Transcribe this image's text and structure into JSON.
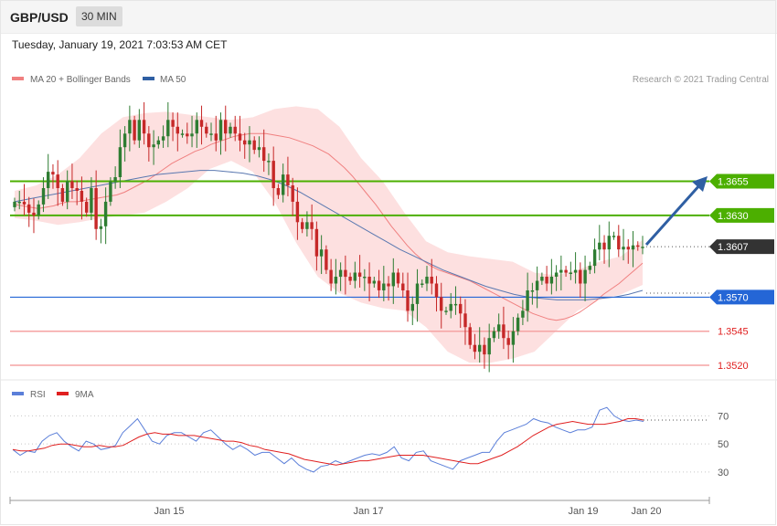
{
  "header": {
    "symbol": "GBP/USD",
    "timeframe": "30 MIN",
    "datetime": "Tuesday, January 19, 2021 7:03:53 AM CET"
  },
  "credit": "Research © 2021 Trading Central",
  "colors": {
    "up": "#2e7d32",
    "down": "#c62828",
    "band": "#fde0e0",
    "ma20": "#f08080",
    "ma50": "#5a78b0",
    "resistance": "#4caf00",
    "support_blue": "#2466d6",
    "support_red": "#f5a3a3",
    "current": "#333333",
    "rsi": "#5b7fd9",
    "rsi_ma": "#e02020"
  },
  "chart_data": [
    {
      "type": "candlestick",
      "legend": [
        {
          "name": "MA 20 + Bollinger Bands",
          "color": "#f08080"
        },
        {
          "name": "MA 50",
          "color": "#2f5fa3"
        }
      ],
      "ylim": [
        1.3512,
        1.3721
      ],
      "x_tick_labels": [
        "Jan 15",
        "Jan 17",
        "Jan 19",
        "Jan 20"
      ],
      "levels": [
        {
          "value": 1.3655,
          "label": "1.3655",
          "kind": "resistance"
        },
        {
          "value": 1.363,
          "label": "1.3630",
          "kind": "resistance"
        },
        {
          "value": 1.3607,
          "label": "1.3607",
          "kind": "current"
        },
        {
          "value": 1.357,
          "label": "1.3570",
          "kind": "support_blue"
        },
        {
          "value": 1.3545,
          "label": "1.3545",
          "kind": "support_red"
        },
        {
          "value": 1.352,
          "label": "1.3520",
          "kind": "support_red"
        }
      ],
      "close": [
        1.364,
        1.364,
        1.3638,
        1.3632,
        1.363,
        1.3638,
        1.365,
        1.3662,
        1.366,
        1.365,
        1.364,
        1.3655,
        1.365,
        1.3648,
        1.364,
        1.3632,
        1.365,
        1.362,
        1.3622,
        1.364,
        1.3655,
        1.3658,
        1.368,
        1.369,
        1.37,
        1.3685,
        1.37,
        1.369,
        1.368,
        1.3682,
        1.3685,
        1.3688,
        1.37,
        1.3695,
        1.369,
        1.369,
        1.3688,
        1.369,
        1.37,
        1.3695,
        1.369,
        1.369,
        1.3685,
        1.37,
        1.369,
        1.3695,
        1.369,
        1.3685,
        1.3682,
        1.3685,
        1.3678,
        1.368,
        1.367,
        1.367,
        1.365,
        1.3645,
        1.366,
        1.3652,
        1.364,
        1.3625,
        1.362,
        1.3625,
        1.362,
        1.36,
        1.3605,
        1.359,
        1.358,
        1.3585,
        1.359,
        1.3585,
        1.3582,
        1.3588,
        1.3585,
        1.3585,
        1.358,
        1.3582,
        1.3575,
        1.358,
        1.3578,
        1.3588,
        1.358,
        1.3575,
        1.356,
        1.3565,
        1.358,
        1.358,
        1.3585,
        1.358,
        1.357,
        1.356,
        1.356,
        1.3565,
        1.3565,
        1.3558,
        1.3548,
        1.3535,
        1.353,
        1.3535,
        1.3528,
        1.354,
        1.3545,
        1.355,
        1.354,
        1.3535,
        1.3545,
        1.3555,
        1.356,
        1.3575,
        1.3575,
        1.3582,
        1.3585,
        1.358,
        1.3585,
        1.3588,
        1.359,
        1.3588,
        1.3588,
        1.359,
        1.358,
        1.359,
        1.3593,
        1.3605,
        1.361,
        1.3605,
        1.3615,
        1.3615,
        1.3605,
        1.3607,
        1.3605,
        1.3608,
        1.3607,
        1.3607
      ],
      "ma20": [
        1.3638,
        1.3637,
        1.3636,
        1.3635,
        1.3636,
        1.3637,
        1.3639,
        1.364,
        1.364,
        1.3641,
        1.3642,
        1.3643,
        1.3644,
        1.3645,
        1.3647,
        1.365,
        1.3653,
        1.3656,
        1.366,
        1.3664,
        1.3668,
        1.3671,
        1.3674,
        1.3677,
        1.3679,
        1.3682,
        1.3684,
        1.3686,
        1.3688,
        1.3689,
        1.369,
        1.369,
        1.369,
        1.3689,
        1.3688,
        1.3687,
        1.3685,
        1.3683,
        1.3681,
        1.3678,
        1.3675,
        1.367,
        1.3665,
        1.3659,
        1.3652,
        1.3645,
        1.3638,
        1.363,
        1.3622,
        1.3615,
        1.3608,
        1.3602,
        1.3597,
        1.3593,
        1.359,
        1.3588,
        1.3586,
        1.3584,
        1.3582,
        1.3579,
        1.3576,
        1.3573,
        1.357,
        1.3567,
        1.3564,
        1.3561,
        1.3558,
        1.3556,
        1.3554,
        1.3553,
        1.3554,
        1.3556,
        1.3559,
        1.3563,
        1.3567,
        1.3572,
        1.3576,
        1.358,
        1.3585,
        1.359,
        1.3595
      ],
      "ma50": [
        1.364,
        1.3642,
        1.3644,
        1.3646,
        1.3648,
        1.365,
        1.3652,
        1.3654,
        1.3656,
        1.3658,
        1.366,
        1.3661,
        1.3662,
        1.3663,
        1.3663,
        1.3662,
        1.3661,
        1.3659,
        1.3656,
        1.3652,
        1.3647,
        1.3641,
        1.3635,
        1.3629,
        1.3623,
        1.3617,
        1.3611,
        1.3605,
        1.36,
        1.3595,
        1.359,
        1.3586,
        1.3582,
        1.3578,
        1.3575,
        1.3572,
        1.357,
        1.3569,
        1.3568,
        1.3568,
        1.3568,
        1.3569,
        1.357,
        1.3572,
        1.3575
      ],
      "bb_upper": [
        1.3648,
        1.3652,
        1.366,
        1.3672,
        1.369,
        1.3702,
        1.3705,
        1.3706,
        1.3704,
        1.3702,
        1.37,
        1.3702,
        1.3708,
        1.371,
        1.3708,
        1.3695,
        1.3672,
        1.3655,
        1.3632,
        1.3611,
        1.3603,
        1.36,
        1.3598,
        1.3596,
        1.3588,
        1.3586,
        1.359,
        1.3596,
        1.36,
        1.3612
      ],
      "bb_lower": [
        1.3628,
        1.3626,
        1.3623,
        1.3625,
        1.3628,
        1.363,
        1.3632,
        1.364,
        1.365,
        1.3664,
        1.367,
        1.3662,
        1.364,
        1.361,
        1.3585,
        1.3573,
        1.3566,
        1.3562,
        1.356,
        1.3548,
        1.353,
        1.3522,
        1.3522,
        1.3525,
        1.353,
        1.3545,
        1.356,
        1.3568,
        1.3572,
        1.3579
      ]
    },
    {
      "type": "line",
      "series": [
        {
          "name": "RSI",
          "color": "#5b7fd9"
        },
        {
          "name": "9MA",
          "color": "#e02020"
        }
      ],
      "ylim": [
        15,
        80
      ],
      "y_ticks": [
        "70",
        "50",
        "30"
      ],
      "rsi": [
        46,
        42,
        45,
        44,
        52,
        56,
        58,
        52,
        48,
        45,
        52,
        50,
        46,
        47,
        49,
        58,
        63,
        68,
        60,
        52,
        50,
        56,
        58,
        58,
        55,
        52,
        58,
        60,
        55,
        50,
        46,
        49,
        46,
        42,
        44,
        44,
        40,
        36,
        40,
        35,
        32,
        30,
        34,
        35,
        38,
        36,
        38,
        40,
        42,
        43,
        42,
        44,
        48,
        40,
        38,
        44,
        45,
        38,
        36,
        34,
        32,
        38,
        40,
        42,
        44,
        44,
        52,
        58,
        60,
        62,
        64,
        68,
        66,
        65,
        62,
        60,
        58,
        60,
        60,
        62,
        74,
        76,
        70,
        67,
        66,
        67,
        66
      ],
      "rsi_ma": [
        46,
        45,
        45,
        46,
        47,
        49,
        50,
        50,
        49,
        48,
        48,
        49,
        48,
        48,
        49,
        52,
        55,
        57,
        58,
        57,
        57,
        56,
        56,
        56,
        55,
        54,
        53,
        52,
        52,
        51,
        49,
        48,
        46,
        45,
        44,
        43,
        41,
        39,
        38,
        37,
        36,
        35,
        36,
        37,
        38,
        38,
        39,
        40,
        41,
        42,
        42,
        42,
        42,
        41,
        40,
        39,
        38,
        37,
        36,
        36,
        38,
        40,
        42,
        45,
        48,
        52,
        56,
        59,
        62,
        64,
        65,
        66,
        65,
        64,
        64,
        64,
        65,
        66,
        68,
        68,
        67
      ]
    }
  ]
}
